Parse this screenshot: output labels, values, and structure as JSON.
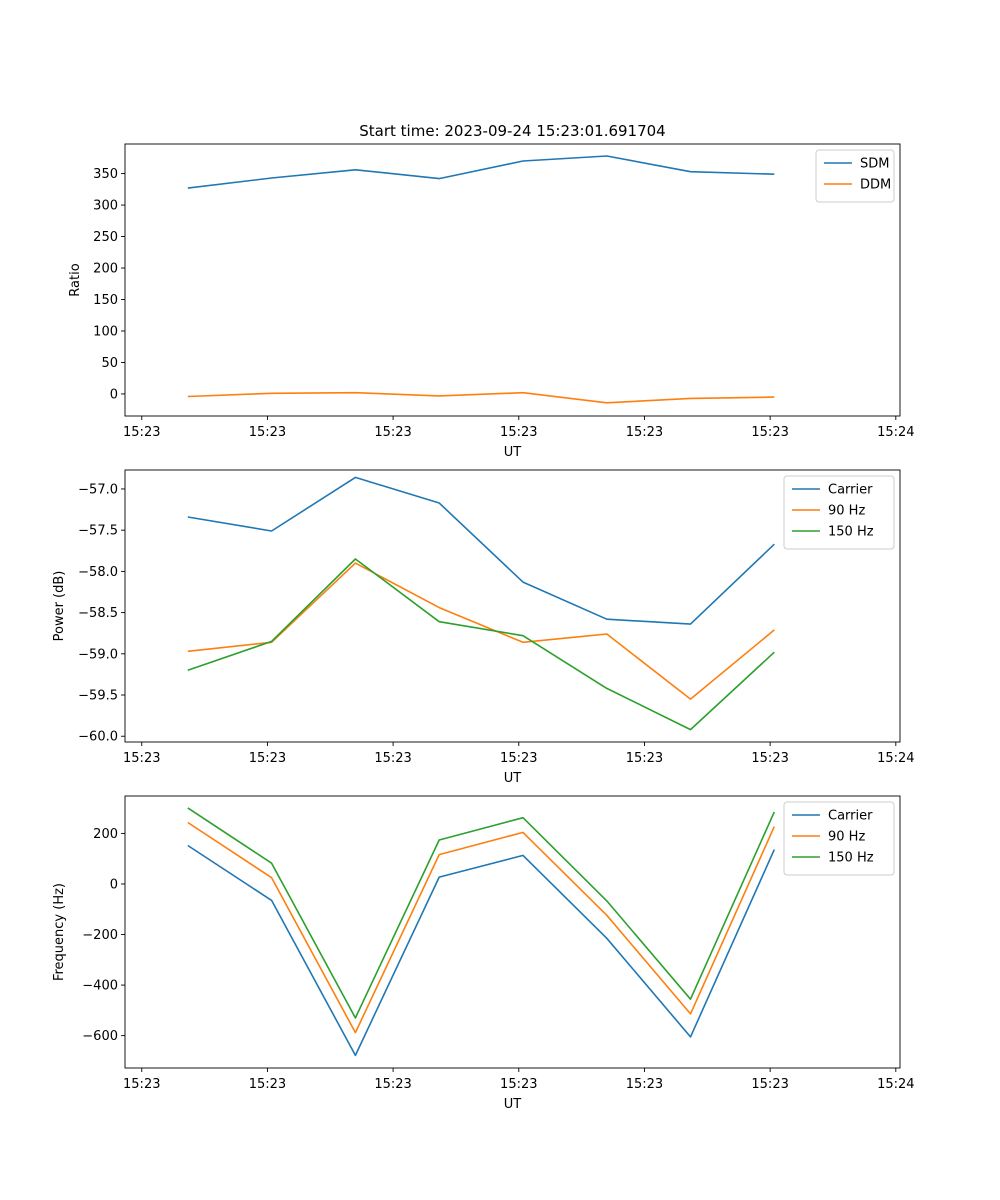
{
  "title": "Start time: 2023-09-24 15:23:01.691704",
  "colors": {
    "blue": "#1f77b4",
    "orange": "#ff7f0e",
    "green": "#2ca02c"
  },
  "chart_data": [
    {
      "type": "line",
      "title": "Start time: 2023-09-24 15:23:01.691704",
      "xlabel": "UT",
      "ylabel": "Ratio",
      "x": [
        1,
        2,
        3,
        4,
        5,
        6,
        7,
        8
      ],
      "xlim": [
        0.25,
        9.5
      ],
      "xticks": [
        0.45,
        1.95,
        3.45,
        4.95,
        6.45,
        7.95,
        9.45
      ],
      "xtick_labels": [
        "15:23",
        "15:23",
        "15:23",
        "15:23",
        "15:23",
        "15:23",
        "15:24"
      ],
      "ylim": [
        -35,
        397
      ],
      "yticks": [
        0,
        50,
        100,
        150,
        200,
        250,
        300,
        350
      ],
      "ytick_labels": [
        "0",
        "50",
        "100",
        "150",
        "200",
        "250",
        "300",
        "350"
      ],
      "legend": "top-right",
      "series": [
        {
          "name": "SDM",
          "color": "#1f77b4",
          "values": [
            327,
            343,
            356,
            342,
            370,
            378,
            353,
            349
          ]
        },
        {
          "name": "DDM",
          "color": "#ff7f0e",
          "values": [
            -4,
            1,
            2,
            -3,
            2,
            -14,
            -7,
            -5
          ]
        }
      ]
    },
    {
      "type": "line",
      "title": "",
      "xlabel": "UT",
      "ylabel": "Power (dB)",
      "x": [
        1,
        2,
        3,
        4,
        5,
        6,
        7,
        8
      ],
      "xlim": [
        0.25,
        9.5
      ],
      "xticks": [
        0.45,
        1.95,
        3.45,
        4.95,
        6.45,
        7.95,
        9.45
      ],
      "xtick_labels": [
        "15:23",
        "15:23",
        "15:23",
        "15:23",
        "15:23",
        "15:23",
        "15:24"
      ],
      "ylim": [
        -60.07,
        -56.77
      ],
      "yticks": [
        -60.0,
        -59.5,
        -59.0,
        -58.5,
        -58.0,
        -57.5,
        -57.0
      ],
      "ytick_labels": [
        "−60.0",
        "−59.5",
        "−59.0",
        "−58.5",
        "−58.0",
        "−57.5",
        "−57.0"
      ],
      "legend": "top-right",
      "series": [
        {
          "name": "Carrier",
          "color": "#1f77b4",
          "values": [
            -57.34,
            -57.51,
            -56.86,
            -57.17,
            -58.13,
            -58.58,
            -58.64,
            -57.67
          ]
        },
        {
          "name": "90 Hz",
          "color": "#ff7f0e",
          "values": [
            -58.97,
            -58.86,
            -57.9,
            -58.44,
            -58.86,
            -58.76,
            -59.55,
            -58.71
          ]
        },
        {
          "name": "150 Hz",
          "color": "#2ca02c",
          "values": [
            -59.2,
            -58.85,
            -57.85,
            -58.61,
            -58.78,
            -59.42,
            -59.92,
            -58.98
          ]
        }
      ]
    },
    {
      "type": "line",
      "title": "",
      "xlabel": "UT",
      "ylabel": "Frequency (Hz)",
      "x": [
        1,
        2,
        3,
        4,
        5,
        6,
        7,
        8
      ],
      "xlim": [
        0.25,
        9.5
      ],
      "xticks": [
        0.45,
        1.95,
        3.45,
        4.95,
        6.45,
        7.95,
        9.45
      ],
      "xtick_labels": [
        "15:23",
        "15:23",
        "15:23",
        "15:23",
        "15:23",
        "15:23",
        "15:24"
      ],
      "ylim": [
        -728,
        348
      ],
      "yticks": [
        -600,
        -400,
        -200,
        0,
        200
      ],
      "ytick_labels": [
        "−600",
        "−400",
        "−200",
        "0",
        "200"
      ],
      "legend": "top-right",
      "series": [
        {
          "name": "Carrier",
          "color": "#1f77b4",
          "values": [
            152,
            -65,
            -678,
            27,
            113,
            -215,
            -605,
            136
          ]
        },
        {
          "name": "90 Hz",
          "color": "#ff7f0e",
          "values": [
            243,
            25,
            -588,
            116,
            204,
            -124,
            -514,
            227
          ]
        },
        {
          "name": "150 Hz",
          "color": "#2ca02c",
          "values": [
            301,
            82,
            -530,
            174,
            262,
            -67,
            -456,
            285
          ]
        }
      ]
    }
  ]
}
